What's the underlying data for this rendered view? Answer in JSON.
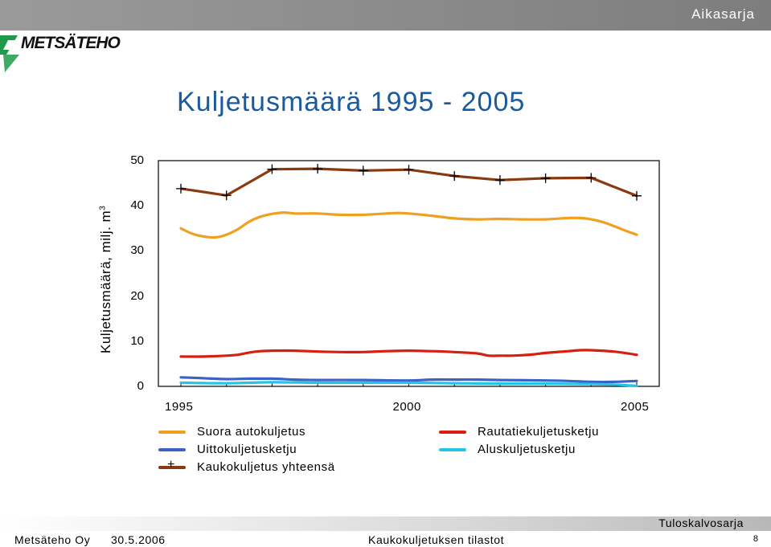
{
  "header": {
    "section_label": "Aikasarja",
    "logo_text": "METSÄTEHO"
  },
  "title": "Kuljetusmäärä 1995 - 2005",
  "footer": {
    "company": "Metsäteho Oy",
    "date": "30.5.2006",
    "subject": "Kaukokuljetuksen tilastot",
    "series_label": "Tuloskalvosarja",
    "page_number": "8"
  },
  "colors": {
    "title": "#1a5a9e",
    "suora": "#f0a020",
    "rautatie": "#d81e10",
    "uitto": "#3a62c8",
    "alus": "#22c4e8",
    "kauko": "#8b3a10"
  },
  "chart_data": {
    "type": "line",
    "ylabel": "Kuljetusmäärä, milj. m",
    "ylabel_sup": "3",
    "ylim": [
      0,
      50
    ],
    "yticks": [
      "0",
      "10",
      "20",
      "30",
      "40",
      "50"
    ],
    "xlim": [
      1995,
      2005
    ],
    "xticks": [
      "1995",
      "2000",
      "2005"
    ],
    "grid": false,
    "legend_position": "bottom",
    "series": [
      {
        "name": "Suora autokuljetus",
        "color_key": "suora",
        "marker": "none",
        "points": [
          [
            1995,
            35.0
          ],
          [
            1995.25,
            33.8
          ],
          [
            1995.5,
            33.2
          ],
          [
            1995.75,
            33.0
          ],
          [
            1996,
            33.6
          ],
          [
            1996.25,
            34.8
          ],
          [
            1996.5,
            36.5
          ],
          [
            1996.75,
            37.6
          ],
          [
            1997,
            38.2
          ],
          [
            1997.25,
            38.5
          ],
          [
            1997.5,
            38.3
          ],
          [
            1997.75,
            38.3
          ],
          [
            1998,
            38.3
          ],
          [
            1998.5,
            38.0
          ],
          [
            1999,
            38.0
          ],
          [
            1999.5,
            38.3
          ],
          [
            1999.75,
            38.4
          ],
          [
            2000,
            38.3
          ],
          [
            2000.5,
            37.8
          ],
          [
            2001,
            37.2
          ],
          [
            2001.5,
            37.0
          ],
          [
            2002,
            37.1
          ],
          [
            2002.5,
            37.0
          ],
          [
            2003,
            37.0
          ],
          [
            2003.5,
            37.3
          ],
          [
            2003.75,
            37.3
          ],
          [
            2004,
            37.0
          ],
          [
            2004.25,
            36.4
          ],
          [
            2004.5,
            35.5
          ],
          [
            2004.75,
            34.5
          ],
          [
            2005,
            33.6
          ]
        ]
      },
      {
        "name": "Rautatiekuljetusketju",
        "color_key": "rautatie",
        "marker": "none",
        "points": [
          [
            1995,
            6.6
          ],
          [
            1995.5,
            6.6
          ],
          [
            1996,
            6.8
          ],
          [
            1996.25,
            7.0
          ],
          [
            1996.5,
            7.5
          ],
          [
            1996.75,
            7.8
          ],
          [
            1997,
            7.9
          ],
          [
            1997.5,
            7.9
          ],
          [
            1998,
            7.7
          ],
          [
            1998.5,
            7.6
          ],
          [
            1999,
            7.6
          ],
          [
            1999.5,
            7.8
          ],
          [
            2000,
            7.9
          ],
          [
            2000.5,
            7.8
          ],
          [
            2001,
            7.6
          ],
          [
            2001.5,
            7.3
          ],
          [
            2001.75,
            6.8
          ],
          [
            2002,
            6.8
          ],
          [
            2002.25,
            6.8
          ],
          [
            2002.5,
            6.9
          ],
          [
            2002.75,
            7.1
          ],
          [
            2003,
            7.4
          ],
          [
            2003.5,
            7.8
          ],
          [
            2003.75,
            8.0
          ],
          [
            2004,
            8.0
          ],
          [
            2004.5,
            7.7
          ],
          [
            2005,
            7.0
          ]
        ]
      },
      {
        "name": "Uittokuljetusketju",
        "color_key": "uitto",
        "marker": "none",
        "points": [
          [
            1995,
            2.0
          ],
          [
            1995.5,
            1.8
          ],
          [
            1996,
            1.6
          ],
          [
            1996.5,
            1.7
          ],
          [
            1997,
            1.7
          ],
          [
            1997.5,
            1.5
          ],
          [
            1998,
            1.4
          ],
          [
            1999,
            1.4
          ],
          [
            2000,
            1.3
          ],
          [
            2000.5,
            1.5
          ],
          [
            2001,
            1.5
          ],
          [
            2001.5,
            1.5
          ],
          [
            2002,
            1.4
          ],
          [
            2003,
            1.3
          ],
          [
            2003.5,
            1.2
          ],
          [
            2004,
            1.0
          ],
          [
            2004.5,
            1.0
          ],
          [
            2005,
            1.2
          ]
        ]
      },
      {
        "name": "Aluskuljetusketju",
        "color_key": "alus",
        "marker": "none",
        "points": [
          [
            1995,
            0.8
          ],
          [
            1996,
            0.7
          ],
          [
            1997,
            0.9
          ],
          [
            1998,
            0.8
          ],
          [
            1999,
            0.8
          ],
          [
            2000,
            0.8
          ],
          [
            2001,
            0.7
          ],
          [
            2002,
            0.6
          ],
          [
            2003,
            0.6
          ],
          [
            2004,
            0.5
          ],
          [
            2004.5,
            0.4
          ],
          [
            2005,
            0.1
          ]
        ]
      },
      {
        "name": "Kaukokuljetus yhteensä",
        "color_key": "kauko",
        "marker": "plus",
        "points": [
          [
            1995,
            43.8
          ],
          [
            1996,
            42.3
          ],
          [
            1997,
            48.1
          ],
          [
            1998,
            48.2
          ],
          [
            1999,
            47.8
          ],
          [
            2000,
            48.0
          ],
          [
            2001,
            46.6
          ],
          [
            2002,
            45.7
          ],
          [
            2003,
            46.1
          ],
          [
            2004,
            46.2
          ],
          [
            2005,
            42.2
          ]
        ]
      }
    ]
  }
}
